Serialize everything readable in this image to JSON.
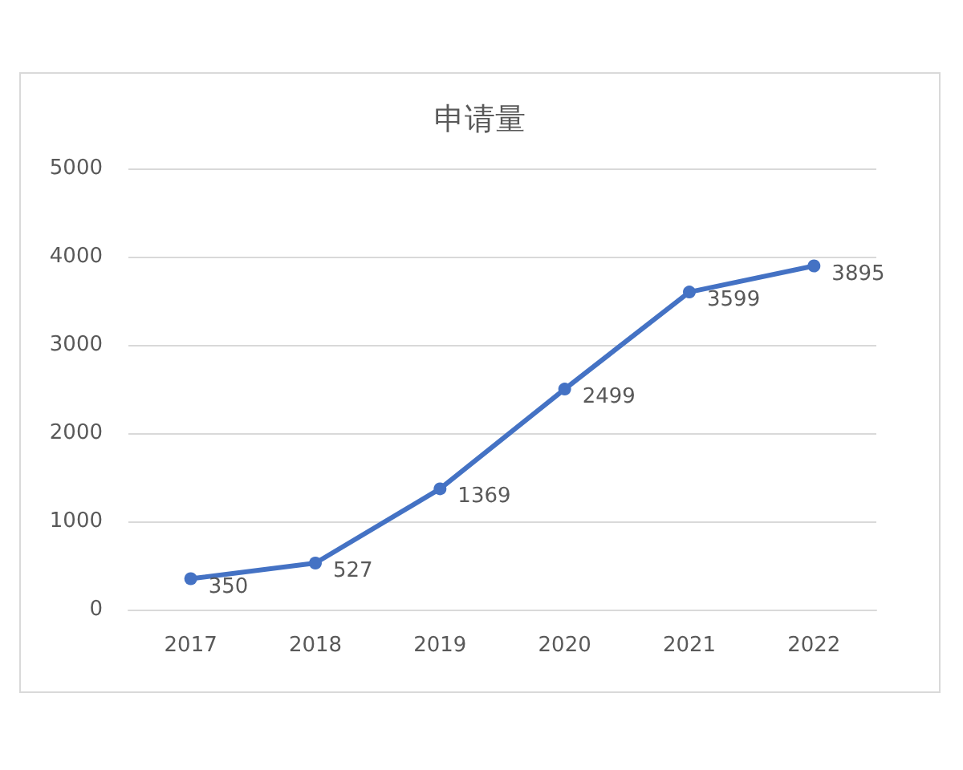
{
  "chart_data": {
    "type": "line",
    "title": "申请量",
    "categories": [
      "2017",
      "2018",
      "2019",
      "2020",
      "2021",
      "2022"
    ],
    "values": [
      350,
      527,
      1369,
      2499,
      3599,
      3895
    ],
    "color": "#4472c4",
    "ylim": [
      0,
      5000
    ],
    "yticks": [
      0,
      1000,
      2000,
      3000,
      4000,
      5000
    ],
    "grid": "y",
    "marker": "circle",
    "data_labels": true
  }
}
